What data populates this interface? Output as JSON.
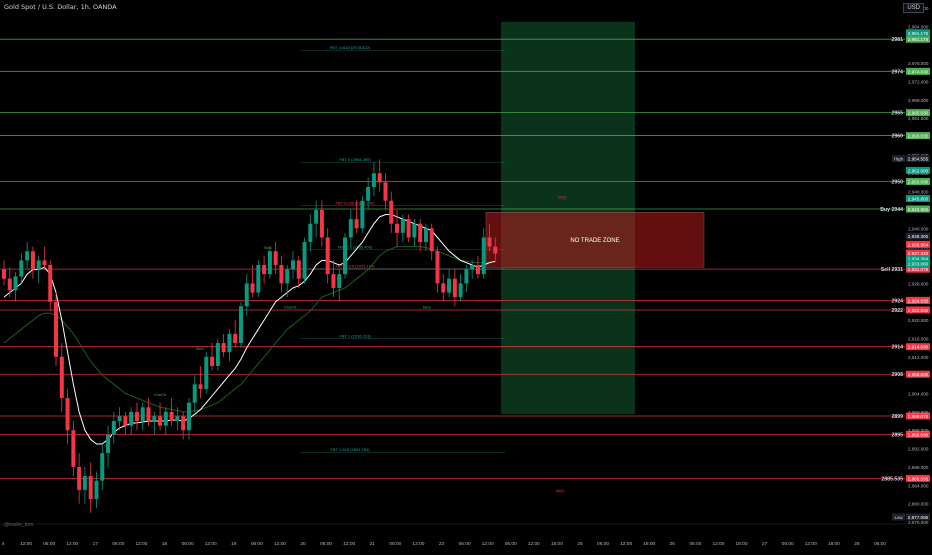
{
  "header": {
    "symbol_title": "Gold Spot / U.S. Dollar, 1h, OANDA",
    "currency": "USD",
    "watermark": "@trader_tom"
  },
  "colors": {
    "background": "#000000",
    "up_candle": "#089981",
    "down_candle": "#f23645",
    "green_level": "#4caf50",
    "red_level": "#f23645",
    "fib_line": "#26a69a",
    "ema_fast": "#ffffff",
    "ema_slow": "#1b5e20",
    "no_trade_fill": "#b71c1c",
    "profit_zone": "#0d3b1e"
  },
  "chart_data": {
    "type": "candlestick",
    "title": "Gold Spot / U.S. Dollar, 1h, OANDA",
    "ylim": [
      2876,
      2988
    ],
    "price_axis_labels": [
      "2,988.000",
      "2,984.000",
      "2,976.000",
      "2,972.000",
      "2,968.000",
      "2,964.000",
      "2,960.000",
      "2,956.000",
      "2,952.000",
      "2,948.000",
      "2,944.000",
      "2,940.000",
      "2,936.000",
      "2,932.000",
      "2,928.000",
      "2,924.000",
      "2,920.000",
      "2,916.000",
      "2,912.000",
      "2,908.000",
      "2,904.000",
      "2,900.000",
      "2,896.000",
      "2,892.000",
      "2,888.000",
      "2,884.000",
      "2,880.000",
      "2,876.000"
    ],
    "time_axis_labels": [
      "4",
      "12:00",
      "06:00",
      "12:00",
      "17",
      "06:00",
      "12:00",
      "18",
      "06:00",
      "12:00",
      "19",
      "06:00",
      "12:00",
      "20",
      "06:00",
      "12:00",
      "21",
      "06:00",
      "12:00",
      "23",
      "06:00",
      "12:00",
      "06:00",
      "12:00",
      "18:00",
      "25",
      "06:00",
      "12:00",
      "18:00",
      "26",
      "06:00",
      "12:00",
      "18:00",
      "27",
      "06:00",
      "12:00",
      "18:00",
      "28",
      "06:00"
    ],
    "horizontal_levels": [
      {
        "label": "2981",
        "price": 2981.2,
        "color": "green",
        "tag": "2,981.175"
      },
      {
        "label": "2974",
        "price": 2974.2,
        "color": "green",
        "tag": "2,974.030"
      },
      {
        "label": "2965",
        "price": 2965.2,
        "color": "green",
        "tag": "2,965.030"
      },
      {
        "label": "2960",
        "price": 2960.2,
        "color": "green",
        "tag": "2,960.030"
      },
      {
        "label": "2950",
        "price": 2950.2,
        "color": "green",
        "tag": "2,950.030"
      },
      {
        "label": "Buy 2944",
        "price": 2944.2,
        "color": "green",
        "tag": "2,943.960"
      },
      {
        "label": "Sell 2931",
        "price": 2931.1,
        "color": "red",
        "tag": "2,931.075"
      },
      {
        "label": "2924",
        "price": 2924.3,
        "color": "red",
        "tag": "2,924.030"
      },
      {
        "label": "2922",
        "price": 2922.2,
        "color": "red",
        "tag": "2,922.030"
      },
      {
        "label": "2914",
        "price": 2914.2,
        "color": "red",
        "tag": "2,914.030"
      },
      {
        "label": "2908",
        "price": 2908.2,
        "color": "red",
        "tag": "2,908.030"
      },
      {
        "label": "2899",
        "price": 2899.1,
        "color": "red",
        "tag": "2,899.070"
      },
      {
        "label": "2895",
        "price": 2895.1,
        "color": "red",
        "tag": "2,895.030"
      },
      {
        "label": "2885.535",
        "price": 2885.5,
        "color": "red",
        "tag": "2,885.535"
      }
    ],
    "axis_tags": [
      {
        "text": "2,981.175",
        "price": 2982.6,
        "color": "green"
      },
      {
        "text": "2,954.555",
        "price": 2955.2,
        "color": "dark"
      },
      {
        "text": "2,952.000",
        "price": 2952.6,
        "color": "green"
      },
      {
        "text": "2,945.800",
        "price": 2946.5,
        "color": "green"
      },
      {
        "text": "2,938.300",
        "price": 2938.3,
        "color": "dark"
      },
      {
        "text": "2,936.954",
        "price": 2936.5,
        "color": "red"
      },
      {
        "text": "2,937.240",
        "price": 2934.6,
        "color": "red"
      },
      {
        "text": "2,934.364",
        "price": 2933.4,
        "color": "green"
      },
      {
        "text": "2,933.060",
        "price": 2932.3,
        "color": "green"
      },
      {
        "text": "2,877.095",
        "price": 2877.1,
        "color": "dark"
      }
    ],
    "axis_badges": [
      {
        "text": "High",
        "price": 2955.2
      },
      {
        "text": "Low",
        "price": 2877.1
      }
    ],
    "fib_labels": [
      {
        "text": "FBT -0.618 (2978.822)",
        "price": 2978.8
      },
      {
        "text": "FBT 0 (2954.390)",
        "price": 2954.4
      },
      {
        "text": "FBT 0.236 (2945.050)",
        "price": 2945.0
      },
      {
        "text": "FBT 0.5 (2935.400)",
        "price": 2935.4
      },
      {
        "text": "FBT 0.618 (2931.169)",
        "price": 2931.2
      },
      {
        "text": "FBT 1 (2916.013)",
        "price": 2916.0
      },
      {
        "text": "FBT 1.618 (2891.181)",
        "price": 2891.2
      }
    ],
    "annotations": [
      {
        "text": "NO TRADE ZONE"
      },
      {
        "text": "sh(f)"
      },
      {
        "text": "sh(f)"
      },
      {
        "text": "ChoCh"
      },
      {
        "text": "ChoCh"
      },
      {
        "text": "BoS"
      },
      {
        "text": "BoS"
      },
      {
        "text": "BoS"
      }
    ],
    "candles": [
      [
        2931.0,
        2933.0,
        2927.5,
        2929.0
      ],
      [
        2929.0,
        2931.5,
        2925.0,
        2926.5
      ],
      [
        2926.5,
        2930.5,
        2924.0,
        2929.5
      ],
      [
        2929.5,
        2934.5,
        2928.0,
        2933.0
      ],
      [
        2933.0,
        2937.0,
        2931.0,
        2935.0
      ],
      [
        2935.0,
        2936.0,
        2929.0,
        2931.0
      ],
      [
        2931.0,
        2934.0,
        2928.0,
        2933.0
      ],
      [
        2933.0,
        2936.0,
        2931.0,
        2932.0
      ],
      [
        2932.0,
        2933.0,
        2922.0,
        2924.0
      ],
      [
        2924.0,
        2926.0,
        2910.0,
        2912.0
      ],
      [
        2912.0,
        2915.0,
        2900.0,
        2903.0
      ],
      [
        2903.0,
        2905.0,
        2893.0,
        2896.0
      ],
      [
        2896.0,
        2898.0,
        2886.0,
        2888.0
      ],
      [
        2888.0,
        2891.0,
        2880.0,
        2883.0
      ],
      [
        2883.0,
        2888.0,
        2880.0,
        2886.0
      ],
      [
        2886.0,
        2889.0,
        2878.0,
        2881.0
      ],
      [
        2881.0,
        2887.0,
        2879.0,
        2885.0
      ],
      [
        2885.0,
        2893.0,
        2883.0,
        2891.0
      ],
      [
        2891.0,
        2897.0,
        2888.0,
        2895.0
      ],
      [
        2895.0,
        2900.0,
        2893.0,
        2898.0
      ],
      [
        2898.0,
        2901.0,
        2896.0,
        2899.0
      ],
      [
        2899.0,
        2900.0,
        2895.0,
        2897.0
      ],
      [
        2897.0,
        2901.0,
        2895.0,
        2900.0
      ],
      [
        2900.0,
        2902.0,
        2896.0,
        2898.0
      ],
      [
        2898.0,
        2902.0,
        2896.0,
        2901.0
      ],
      [
        2901.0,
        2903.0,
        2897.0,
        2898.0
      ],
      [
        2898.0,
        2900.0,
        2895.0,
        2899.0
      ],
      [
        2899.0,
        2902.0,
        2896.0,
        2897.0
      ],
      [
        2897.0,
        2901.0,
        2895.0,
        2900.0
      ],
      [
        2900.0,
        2903.0,
        2897.0,
        2898.0
      ],
      [
        2898.0,
        2901.0,
        2896.0,
        2899.0
      ],
      [
        2899.0,
        2900.0,
        2894.0,
        2896.0
      ],
      [
        2896.0,
        2903.0,
        2894.0,
        2902.0
      ],
      [
        2902.0,
        2908.0,
        2900.0,
        2906.0
      ],
      [
        2906.0,
        2910.0,
        2903.0,
        2905.0
      ],
      [
        2905.0,
        2913.0,
        2904.0,
        2912.0
      ],
      [
        2912.0,
        2915.0,
        2909.0,
        2910.0
      ],
      [
        2910.0,
        2916.0,
        2909.0,
        2915.0
      ],
      [
        2915.0,
        2917.0,
        2912.0,
        2913.0
      ],
      [
        2913.0,
        2918.0,
        2911.0,
        2917.0
      ],
      [
        2917.0,
        2920.0,
        2914.0,
        2915.0
      ],
      [
        2915.0,
        2924.0,
        2914.0,
        2923.0
      ],
      [
        2923.0,
        2930.0,
        2921.0,
        2928.0
      ],
      [
        2928.0,
        2932.0,
        2925.0,
        2926.0
      ],
      [
        2926.0,
        2933.0,
        2925.0,
        2932.0
      ],
      [
        2932.0,
        2934.0,
        2928.0,
        2930.0
      ],
      [
        2930.0,
        2936.0,
        2929.0,
        2935.0
      ],
      [
        2935.0,
        2937.0,
        2930.0,
        2932.0
      ],
      [
        2932.0,
        2934.0,
        2926.0,
        2928.0
      ],
      [
        2928.0,
        2932.0,
        2925.0,
        2931.0
      ],
      [
        2931.0,
        2935.0,
        2929.0,
        2933.0
      ],
      [
        2933.0,
        2934.0,
        2927.0,
        2929.0
      ],
      [
        2929.0,
        2938.0,
        2928.0,
        2937.0
      ],
      [
        2937.0,
        2943.0,
        2935.0,
        2941.0
      ],
      [
        2941.0,
        2946.0,
        2938.0,
        2944.0
      ],
      [
        2944.0,
        2946.0,
        2936.0,
        2938.0
      ],
      [
        2938.0,
        2940.0,
        2928.0,
        2930.0
      ],
      [
        2930.0,
        2933.0,
        2925.0,
        2927.0
      ],
      [
        2927.0,
        2931.0,
        2924.0,
        2930.0
      ],
      [
        2930.0,
        2939.0,
        2929.0,
        2938.0
      ],
      [
        2938.0,
        2944.0,
        2936.0,
        2942.0
      ],
      [
        2942.0,
        2946.0,
        2939.0,
        2940.0
      ],
      [
        2940.0,
        2947.0,
        2939.0,
        2946.0
      ],
      [
        2946.0,
        2951.0,
        2944.0,
        2949.0
      ],
      [
        2949.0,
        2954.5,
        2947.0,
        2952.0
      ],
      [
        2952.0,
        2955.0,
        2948.0,
        2950.0
      ],
      [
        2950.0,
        2952.0,
        2944.0,
        2946.0
      ],
      [
        2946.0,
        2948.0,
        2939.0,
        2941.0
      ],
      [
        2941.0,
        2944.0,
        2936.0,
        2939.0
      ],
      [
        2939.0,
        2943.0,
        2937.0,
        2942.0
      ],
      [
        2942.0,
        2943.0,
        2937.0,
        2938.0
      ],
      [
        2938.0,
        2942.0,
        2936.0,
        2941.0
      ],
      [
        2941.0,
        2942.0,
        2935.0,
        2937.0
      ],
      [
        2937.0,
        2941.0,
        2935.0,
        2940.0
      ],
      [
        2940.0,
        2941.0,
        2933.0,
        2935.0
      ],
      [
        2935.0,
        2936.0,
        2926.0,
        2928.0
      ],
      [
        2928.0,
        2930.0,
        2924.0,
        2926.0
      ],
      [
        2926.0,
        2931.0,
        2925.0,
        2929.0
      ],
      [
        2929.0,
        2931.0,
        2923.0,
        2925.0
      ],
      [
        2925.0,
        2930.0,
        2924.0,
        2928.0
      ],
      [
        2928.0,
        2932.0,
        2926.0,
        2931.0
      ],
      [
        2931.0,
        2933.0,
        2929.0,
        2932.0
      ],
      [
        2932.0,
        2934.0,
        2929.0,
        2930.0
      ],
      [
        2930.0,
        2940.0,
        2929.0,
        2938.0
      ],
      [
        2938.0,
        2941.0,
        2935.0,
        2936.0
      ],
      [
        2936.0,
        2938.0,
        2933.0,
        2934.5
      ]
    ],
    "ema_fast_values": [
      2925.0,
      2926.0,
      2927.0,
      2928.0,
      2930.0,
      2931.0,
      2931.0,
      2931.5,
      2930.0,
      2926.0,
      2920.0,
      2913.0,
      2906.0,
      2900.0,
      2896.0,
      2894.0,
      2893.0,
      2893.0,
      2894.0,
      2895.5,
      2896.5,
      2897.0,
      2897.5,
      2897.6,
      2897.8,
      2898.0,
      2898.0,
      2898.0,
      2898.0,
      2898.2,
      2898.2,
      2898.0,
      2898.5,
      2899.5,
      2900.5,
      2902.0,
      2903.5,
      2905.0,
      2906.5,
      2908.0,
      2909.5,
      2911.5,
      2914.0,
      2916.0,
      2918.0,
      2920.0,
      2922.0,
      2924.0,
      2925.0,
      2926.0,
      2927.0,
      2927.5,
      2928.5,
      2930.0,
      2932.0,
      2933.0,
      2933.0,
      2932.5,
      2932.0,
      2932.5,
      2934.0,
      2935.5,
      2937.0,
      2939.0,
      2941.0,
      2942.5,
      2943.0,
      2943.0,
      2942.5,
      2942.0,
      2941.5,
      2941.0,
      2940.5,
      2940.0,
      2939.5,
      2938.0,
      2936.5,
      2935.0,
      2934.0,
      2933.0,
      2932.5,
      2932.0,
      2931.5,
      2932.0,
      2932.5,
      2932.8
    ],
    "ema_slow_values": [
      2915.0,
      2916.0,
      2917.0,
      2918.0,
      2919.0,
      2920.0,
      2921.0,
      2921.5,
      2921.5,
      2921.0,
      2920.0,
      2918.5,
      2917.0,
      2915.0,
      2913.0,
      2911.0,
      2909.5,
      2908.0,
      2907.0,
      2906.0,
      2905.0,
      2904.0,
      2903.5,
      2903.0,
      2902.5,
      2902.0,
      2901.5,
      2901.0,
      2900.8,
      2900.5,
      2900.3,
      2900.0,
      2900.0,
      2900.2,
      2900.5,
      2901.0,
      2901.5,
      2902.0,
      2903.0,
      2904.0,
      2905.0,
      2906.0,
      2907.5,
      2909.0,
      2910.5,
      2912.0,
      2913.5,
      2915.0,
      2916.5,
      2918.0,
      2919.0,
      2920.0,
      2921.0,
      2922.0,
      2923.5,
      2925.0,
      2925.5,
      2926.0,
      2926.5,
      2927.0,
      2928.0,
      2929.0,
      2930.0,
      2931.0,
      2932.5,
      2934.0,
      2935.0,
      2935.5,
      2936.0,
      2936.0,
      2936.0,
      2936.0,
      2936.0,
      2935.8,
      2935.5,
      2935.0,
      2934.5,
      2934.0,
      2933.5,
      2933.0,
      2932.8,
      2932.6,
      2932.5,
      2932.5,
      2932.6,
      2932.7
    ],
    "no_trade_zone": {
      "label": "NO TRADE ZONE",
      "top_price": 2943.5,
      "bottom_price": 2931.5
    },
    "long_position_zone": {
      "top_price": 2985.0,
      "bottom_price": 2899.5
    }
  }
}
